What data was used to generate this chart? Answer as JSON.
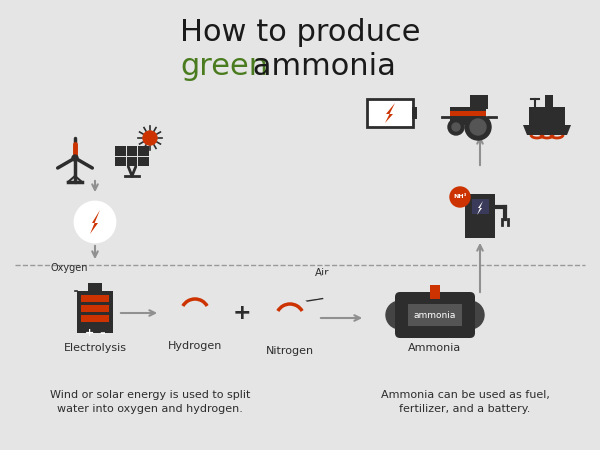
{
  "background_color": "#e5e5e5",
  "title_line1": "How to produce",
  "title_line2_green": "green",
  "title_line2_black": " ammonia",
  "title_fontsize": 22,
  "title_color": "#1a1a1a",
  "green_color": "#4a7c1f",
  "red_color": "#cc3300",
  "dark_color": "#2d2d2d",
  "arrow_color": "#909090",
  "dashed_line_color": "#999999",
  "bottom_text_left": "Wind or solar energy is used to split\nwater into oxygen and hydrogen.",
  "bottom_text_right": "Ammonia can be used as fuel,\nfertilizer, and a battery.",
  "label_electrolysis": "Electrolysis",
  "label_hydrogen": "Hydrogen",
  "label_nitrogen": "Nitrogen",
  "label_ammonia": "Ammonia",
  "label_oxygen": "Oxygen",
  "label_air": "Air"
}
